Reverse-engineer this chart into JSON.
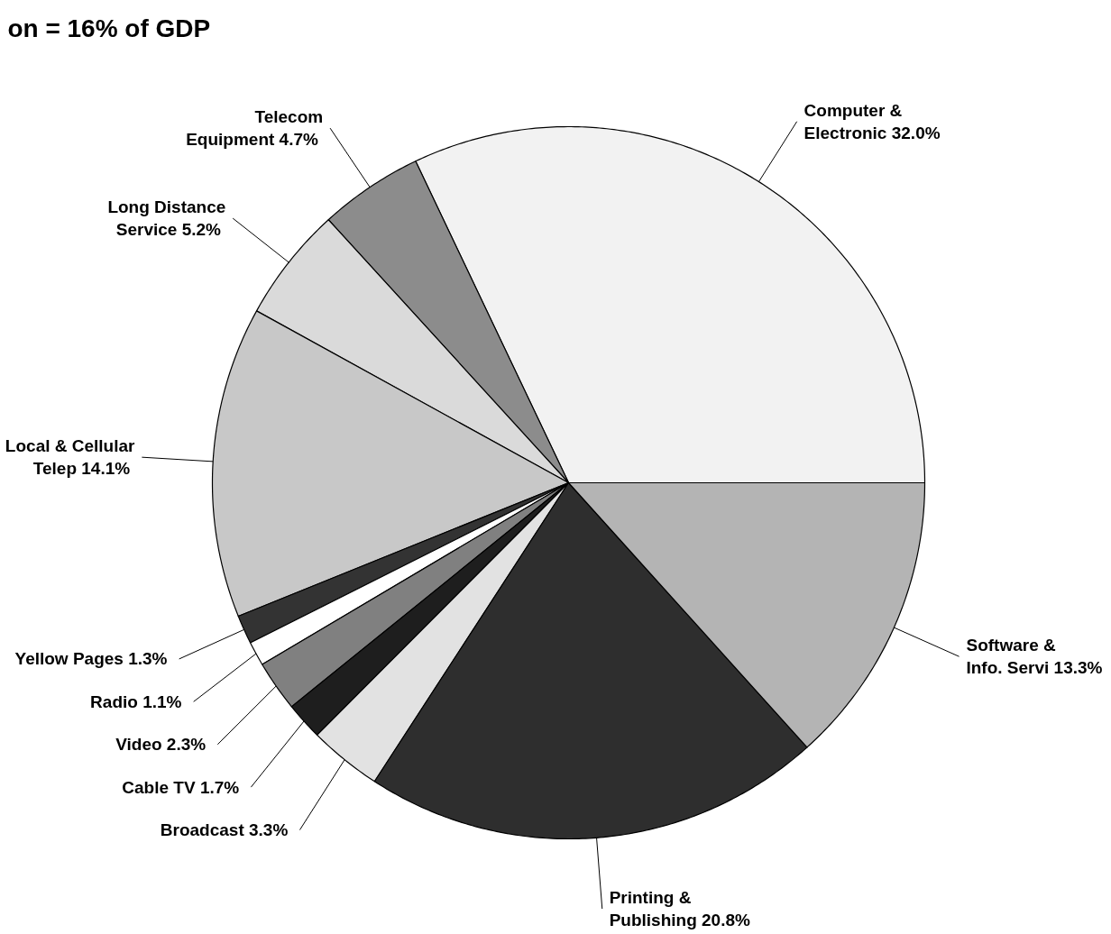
{
  "chart_data": {
    "type": "pie",
    "title": "on = 16% of GDP",
    "categories": [
      "Computer &\nElectronic",
      "Telecom\nEquipment",
      "Long Distance\nService",
      "Local & Cellular\nTelep",
      "Yellow Pages",
      "Radio",
      "Video",
      "Cable TV",
      "Broadcast",
      "Printing &\nPublishing",
      "Software &\nInfo. Servi"
    ],
    "values": [
      32.0,
      4.7,
      5.2,
      14.1,
      1.3,
      1.1,
      2.3,
      1.7,
      3.3,
      20.8,
      13.3
    ],
    "value_labels": [
      "32.0%",
      "4.7%",
      "5.2%",
      "14.1%",
      "1.3%",
      "1.1%",
      "2.3%",
      "1.7%",
      "3.3%",
      "20.8%",
      "13.3%"
    ],
    "colors": [
      "#f2f2f2",
      "#8c8c8c",
      "#dadada",
      "#c8c8c8",
      "#333333",
      "#ffffff",
      "#808080",
      "#1e1e1e",
      "#e2e2e2",
      "#2e2e2e",
      "#b4b4b4"
    ]
  }
}
